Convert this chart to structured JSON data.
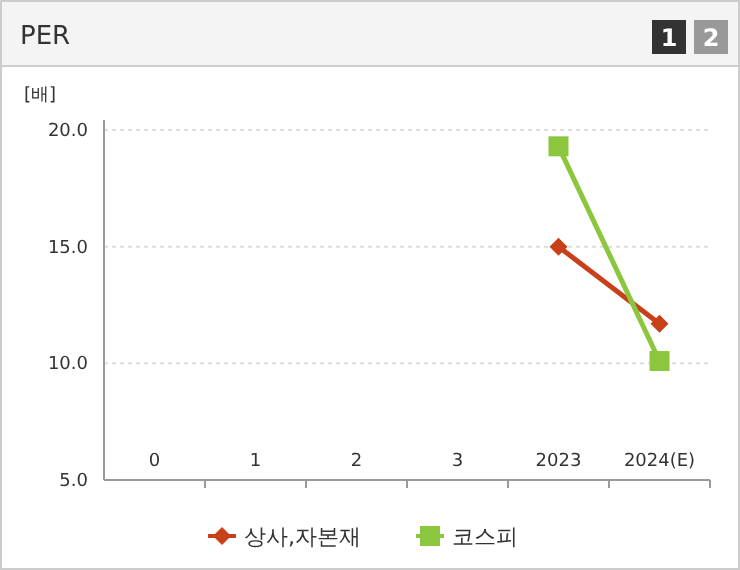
{
  "chart_data": {
    "type": "line",
    "title": "PER",
    "ylabel": "[배]",
    "annotations": [
      "1",
      "2"
    ],
    "categories": [
      "0",
      "1",
      "2",
      "3",
      "2023",
      "2024(E)"
    ],
    "series": [
      {
        "name": "상사,자본재",
        "color": "#c8401a",
        "marker": "diamond",
        "values": [
          null,
          null,
          null,
          null,
          15.0,
          11.7
        ]
      },
      {
        "name": "코스피",
        "color": "#8cc63e",
        "marker": "square",
        "values": [
          null,
          null,
          null,
          null,
          19.3,
          10.1
        ]
      }
    ],
    "ylim": [
      5,
      20
    ],
    "yticks": [
      {
        "value": 5,
        "label": "5.0"
      },
      {
        "value": 10,
        "label": "10.0"
      },
      {
        "value": 15,
        "label": "15.0"
      },
      {
        "value": 20,
        "label": "20.0"
      }
    ],
    "grid": "y",
    "legend": "bottom"
  }
}
